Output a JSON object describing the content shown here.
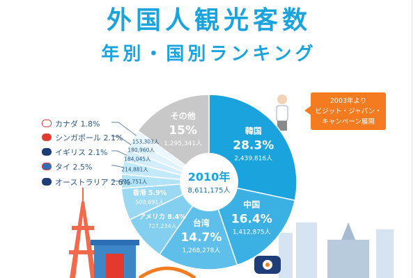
{
  "header": {
    "title": "外国人観光客数",
    "subtitle": "年別・国別ランキング"
  },
  "callout": {
    "line1": "2003年より",
    "line2": "ビジット・ジャパン・",
    "line3": "キャンペーン展開"
  },
  "chart_data": {
    "type": "pie",
    "title": "外国人観光客数 年別・国別ランキング",
    "center": {
      "year": "2010年",
      "total": "8,611,175人"
    },
    "slices": [
      {
        "name": "韓国",
        "percent": "28.3%",
        "count": "2,439,816人",
        "value": 28.3,
        "color": "#1aa3dc"
      },
      {
        "name": "中国",
        "percent": "16.4%",
        "count": "1,412,875人",
        "value": 16.4,
        "color": "#3bb0e3"
      },
      {
        "name": "台湾",
        "percent": "14.7%",
        "count": "1,268,278人",
        "value": 14.7,
        "color": "#5ec0ea"
      },
      {
        "name": "アメリカ",
        "percent": "8.4%",
        "count": "727,234人",
        "value": 8.4,
        "color": "#82cff0"
      },
      {
        "name": "香港",
        "percent": "5.9%",
        "count": "508,691人",
        "value": 5.9,
        "color": "#9bd9f3"
      },
      {
        "name": "オーストラリア",
        "percent": "2.6%",
        "count": "225,751人",
        "value": 2.6,
        "color": "#b2e2f6"
      },
      {
        "name": "タイ",
        "percent": "2.5%",
        "count": "214,881人",
        "value": 2.5,
        "color": "#c4e9f8"
      },
      {
        "name": "イギリス",
        "percent": "2.1%",
        "count": "184,045人",
        "value": 2.1,
        "color": "#d3eefa"
      },
      {
        "name": "シンガポール",
        "percent": "2.1%",
        "count": "180,960人",
        "value": 2.1,
        "color": "#e0f3fb"
      },
      {
        "name": "カナダ",
        "percent": "1.8%",
        "count": "153,303人",
        "value": 1.8,
        "color": "#ebf7fc"
      },
      {
        "name": "その他",
        "percent": "15%",
        "count": "1,295,341人",
        "value": 15.0,
        "color": "#c8c8c8"
      }
    ],
    "colors": {
      "brand": "#1aa3dc",
      "accent": "#f47b20",
      "other": "#c8c8c8"
    }
  }
}
